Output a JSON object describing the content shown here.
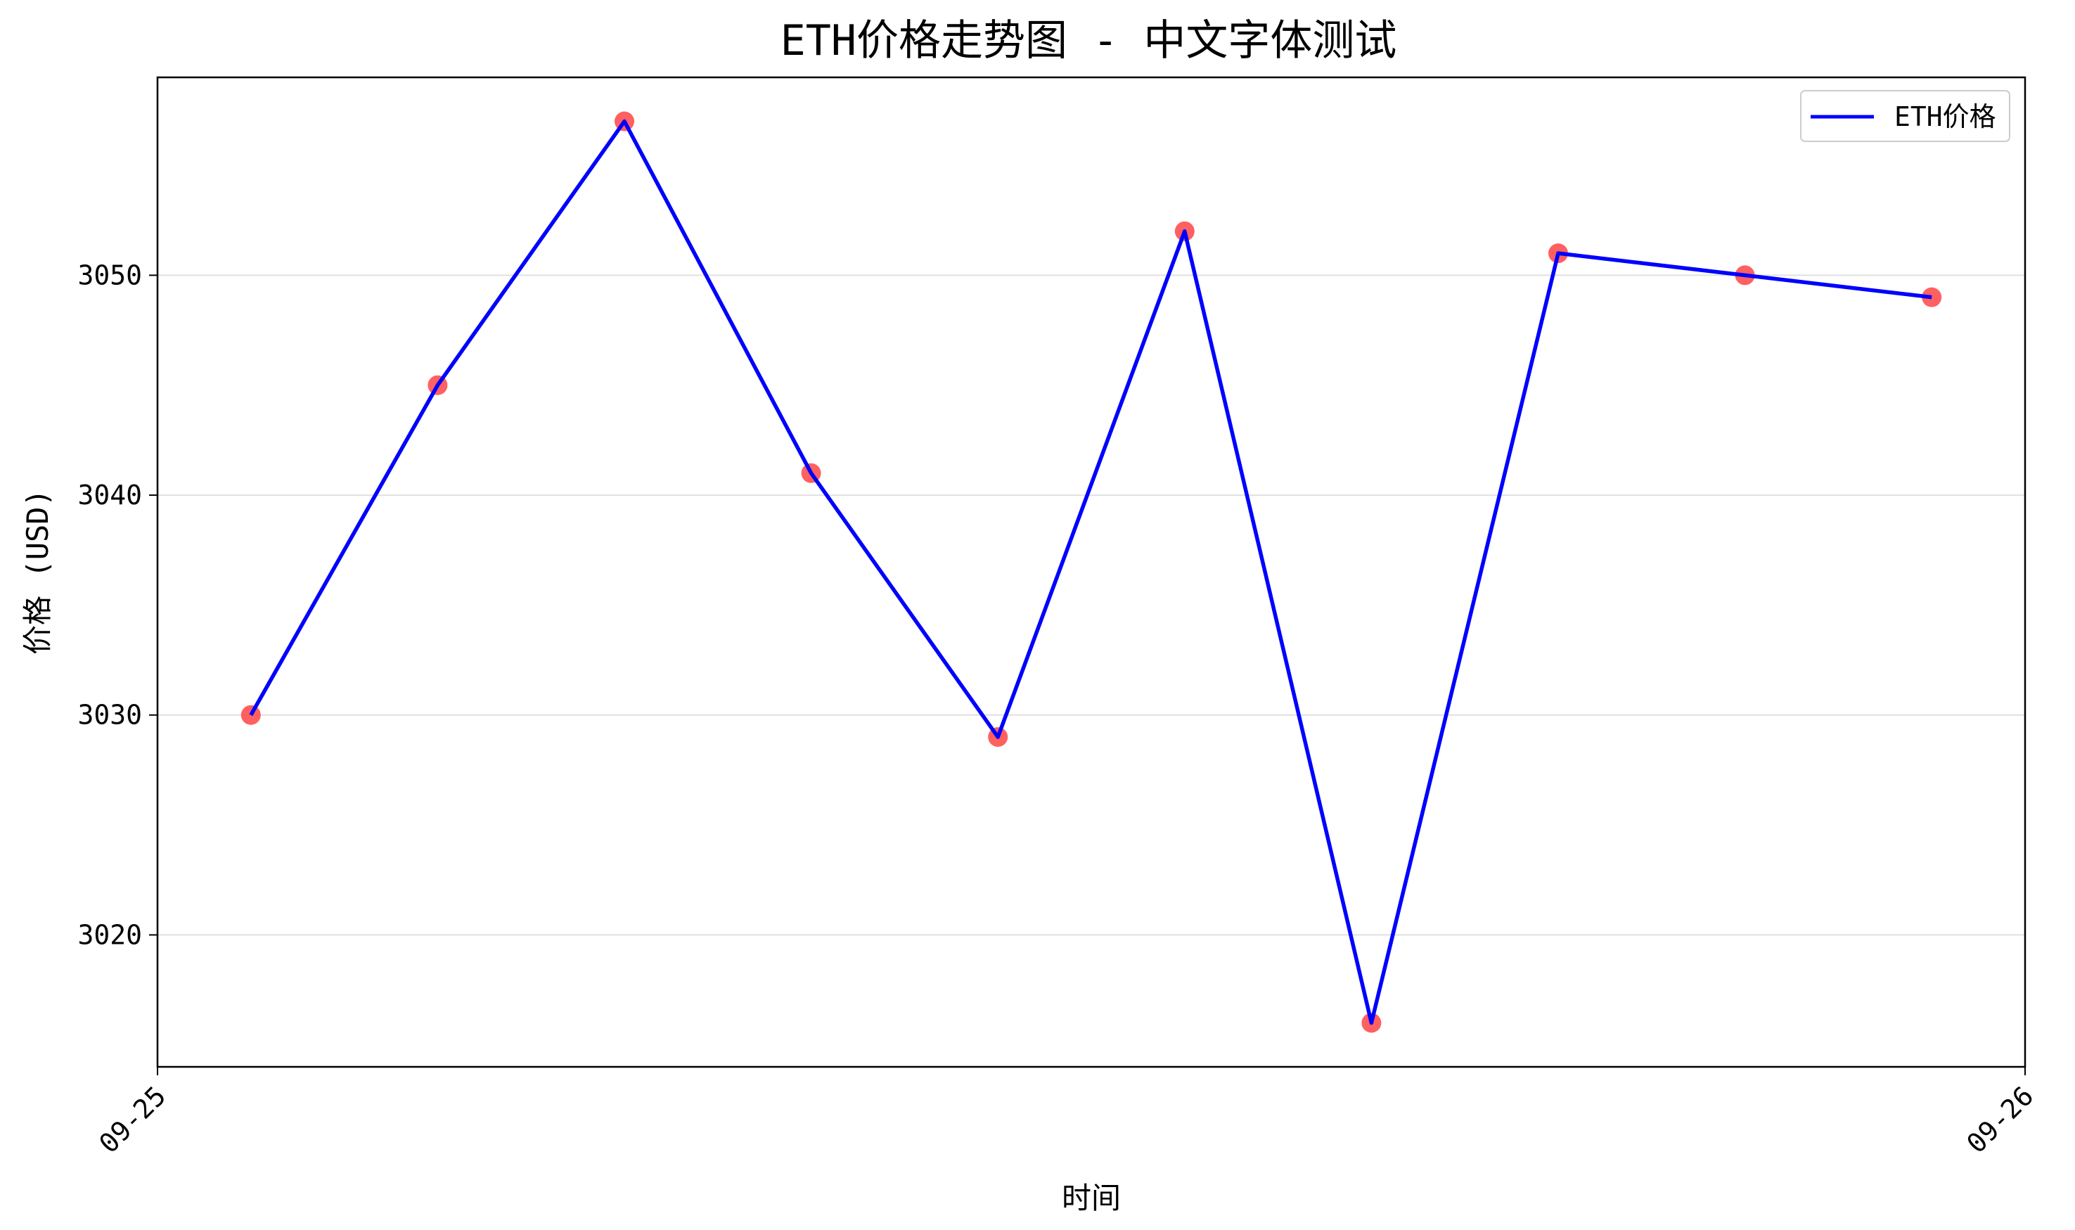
{
  "chart_data": {
    "type": "line",
    "title": "ETH价格走势图 - 中文字体测试",
    "xlabel": "时间",
    "ylabel": "价格 (USD)",
    "x": [
      "09-25 01:12",
      "09-25 03:36",
      "09-25 06:00",
      "09-25 08:24",
      "09-25 10:48",
      "09-25 13:12",
      "09-25 15:36",
      "09-25 18:00",
      "09-25 20:24",
      "09-25 22:48"
    ],
    "xlim": [
      "09-25 00:00",
      "09-26 00:00"
    ],
    "xticks": [
      "09-25",
      "09-26"
    ],
    "ylim": [
      3014,
      3059
    ],
    "yticks": [
      3020,
      3030,
      3040,
      3050
    ],
    "grid": "horizontal",
    "legend_position": "top-right",
    "series": [
      {
        "name": "ETH价格",
        "color": "#0000ff",
        "marker_color": "#ff4444",
        "values": [
          3030,
          3045,
          3057,
          3041,
          3029,
          3052,
          3016,
          3051,
          3050,
          3049
        ]
      }
    ]
  }
}
